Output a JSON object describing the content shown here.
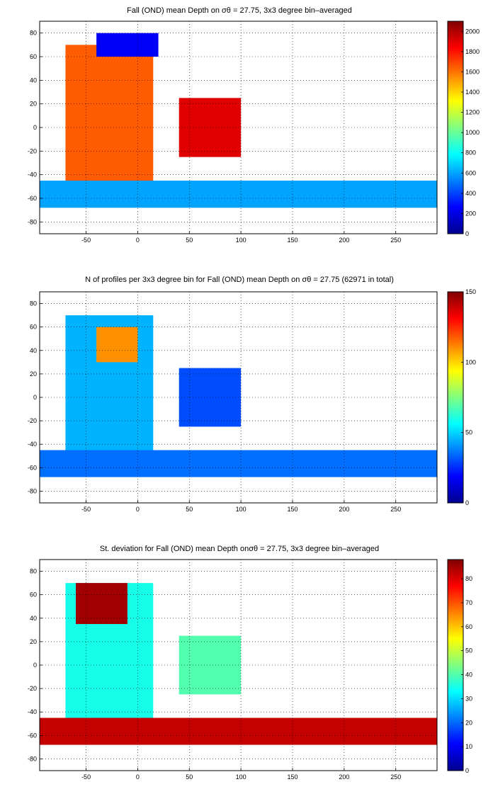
{
  "chart_data": [
    {
      "type": "heatmap",
      "title": "Fall (OND) mean Depth on σθ = 27.75, 3x3 degree bin–averaged",
      "xlim": [
        -95,
        290
      ],
      "ylim": [
        -90,
        90
      ],
      "x_ticks": [
        "-50",
        "0",
        "50",
        "100",
        "150",
        "200",
        "250"
      ],
      "y_ticks": [
        "80",
        "60",
        "40",
        "20",
        "0",
        "-20",
        "-40",
        "-60",
        "-80"
      ],
      "colorbar": {
        "min": 0,
        "max": 2100,
        "ticks": [
          "2000",
          "1800",
          "1600",
          "1400",
          "1200",
          "1000",
          "800",
          "600",
          "400",
          "200",
          "0"
        ]
      },
      "grid": true,
      "regions": [
        {
          "lon": [
            -70,
            15
          ],
          "lat": [
            -55,
            70
          ],
          "value": 1650
        },
        {
          "lon": [
            40,
            100
          ],
          "lat": [
            -25,
            25
          ],
          "value": 1900
        },
        {
          "lon": [
            -95,
            290
          ],
          "lat": [
            -68,
            -45
          ],
          "value": 600
        },
        {
          "lon": [
            -40,
            20
          ],
          "lat": [
            60,
            80
          ],
          "value": 250
        }
      ]
    },
    {
      "type": "heatmap",
      "title": "N of profiles per 3x3 degree bin for Fall (OND) mean Depth on σθ = 27.75 (62971 in total)",
      "xlim": [
        -95,
        290
      ],
      "ylim": [
        -90,
        90
      ],
      "x_ticks": [
        "-50",
        "0",
        "50",
        "100",
        "150",
        "200",
        "250"
      ],
      "y_ticks": [
        "80",
        "60",
        "40",
        "20",
        "0",
        "-20",
        "-40",
        "-60",
        "-80"
      ],
      "colorbar": {
        "min": 0,
        "max": 150,
        "ticks": [
          "150",
          "100",
          "50",
          "0"
        ]
      },
      "grid": true,
      "regions": [
        {
          "lon": [
            -70,
            15
          ],
          "lat": [
            -55,
            70
          ],
          "value": 45
        },
        {
          "lon": [
            -40,
            0
          ],
          "lat": [
            30,
            60
          ],
          "value": 110
        },
        {
          "lon": [
            40,
            100
          ],
          "lat": [
            -25,
            25
          ],
          "value": 30
        },
        {
          "lon": [
            -95,
            290
          ],
          "lat": [
            -68,
            -45
          ],
          "value": 35
        }
      ]
    },
    {
      "type": "heatmap",
      "title": "St. deviation for Fall (OND) mean Depth onσθ = 27.75, 3x3 degree bin–averaged",
      "xlim": [
        -95,
        290
      ],
      "ylim": [
        -90,
        90
      ],
      "x_ticks": [
        "-50",
        "0",
        "50",
        "100",
        "150",
        "200",
        "250"
      ],
      "y_ticks": [
        "80",
        "60",
        "40",
        "20",
        "0",
        "-20",
        "-40",
        "-60",
        "-80"
      ],
      "colorbar": {
        "min": 0,
        "max": 88,
        "ticks": [
          "80",
          "70",
          "60",
          "50",
          "40",
          "30",
          "20",
          "10",
          "0"
        ]
      },
      "grid": true,
      "regions": [
        {
          "lon": [
            -70,
            15
          ],
          "lat": [
            -55,
            70
          ],
          "value": 35
        },
        {
          "lon": [
            -60,
            -10
          ],
          "lat": [
            35,
            70
          ],
          "value": 85
        },
        {
          "lon": [
            40,
            100
          ],
          "lat": [
            -25,
            25
          ],
          "value": 40
        },
        {
          "lon": [
            -95,
            290
          ],
          "lat": [
            -68,
            -45
          ],
          "value": 82
        }
      ]
    }
  ]
}
